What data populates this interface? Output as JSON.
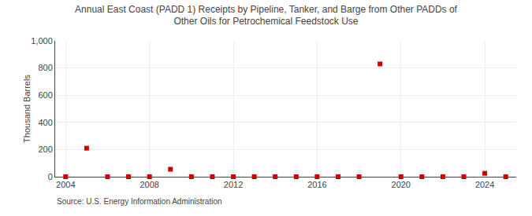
{
  "chart_data": {
    "type": "scatter",
    "title": "Annual East Coast (PADD 1) Receipts by Pipeline, Tanker, and Barge from Other PADDs of\nOther Oils for Petrochemical Feedstock Use",
    "ylabel": "Thousand Barrels",
    "annotations": [
      "Source: U.S. Energy Information Administration"
    ],
    "x": [
      2004,
      2005,
      2006,
      2007,
      2008,
      2009,
      2010,
      2011,
      2012,
      2013,
      2014,
      2015,
      2016,
      2017,
      2018,
      2019,
      2020,
      2021,
      2022,
      2023,
      2024,
      2025
    ],
    "values": [
      0,
      210,
      0,
      0,
      0,
      55,
      0,
      0,
      0,
      0,
      0,
      0,
      0,
      0,
      0,
      830,
      0,
      0,
      0,
      0,
      25,
      0
    ],
    "color": "#cc0000",
    "marker": "square",
    "xlim": [
      2003.5,
      2025.5
    ],
    "xticks": [
      2004,
      2008,
      2012,
      2016,
      2020,
      2024
    ],
    "ylim": [
      0,
      1000
    ],
    "yticks": [
      0,
      200,
      400,
      600,
      800,
      {
        "value": 1000,
        "label": "1,000"
      }
    ],
    "grid": true
  }
}
